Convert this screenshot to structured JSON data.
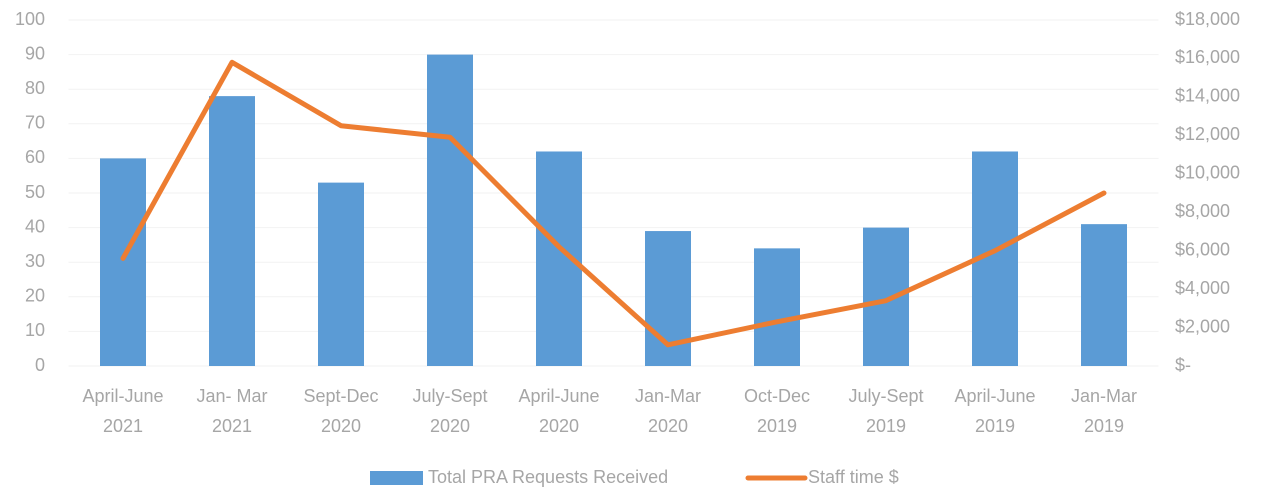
{
  "chart_data": {
    "type": "bar",
    "categories": [
      [
        "April-June",
        "2021"
      ],
      [
        "Jan- Mar",
        "2021"
      ],
      [
        "Sept-Dec",
        "2020"
      ],
      [
        "July-Sept",
        "2020"
      ],
      [
        "April-June",
        "2020"
      ],
      [
        "Jan-Mar",
        "2020"
      ],
      [
        "Oct-Dec",
        "2019"
      ],
      [
        "July-Sept",
        "2019"
      ],
      [
        "April-June",
        "2019"
      ],
      [
        "Jan-Mar",
        "2019"
      ]
    ],
    "series": [
      {
        "name": "Total PRA Requests Received",
        "type": "bar",
        "color": "#5b9bd5",
        "values": [
          60,
          78,
          53,
          90,
          62,
          39,
          34,
          40,
          62,
          41
        ]
      },
      {
        "name": "Staff time $",
        "type": "line",
        "axis": "y2",
        "color": "#ed7d31",
        "values": [
          5600,
          15800,
          12500,
          11900,
          6200,
          1100,
          2300,
          3400,
          6000,
          9000
        ]
      }
    ],
    "ylim": [
      0,
      100
    ],
    "yticks": [
      0,
      10,
      20,
      30,
      40,
      50,
      60,
      70,
      80,
      90,
      100
    ],
    "y2lim": [
      0,
      18000
    ],
    "y2ticks": [
      {
        "value": 0,
        "label": "$-"
      },
      {
        "value": 2000,
        "label": "$2,000"
      },
      {
        "value": 4000,
        "label": "$4,000"
      },
      {
        "value": 6000,
        "label": "$6,000"
      },
      {
        "value": 8000,
        "label": "$8,000"
      },
      {
        "value": 10000,
        "label": "$10,000"
      },
      {
        "value": 12000,
        "label": "$12,000"
      },
      {
        "value": 14000,
        "label": "$14,000"
      },
      {
        "value": 16000,
        "label": "$16,000"
      },
      {
        "value": 18000,
        "label": "$18,000"
      }
    ],
    "grid": true,
    "legend": "bottom"
  }
}
